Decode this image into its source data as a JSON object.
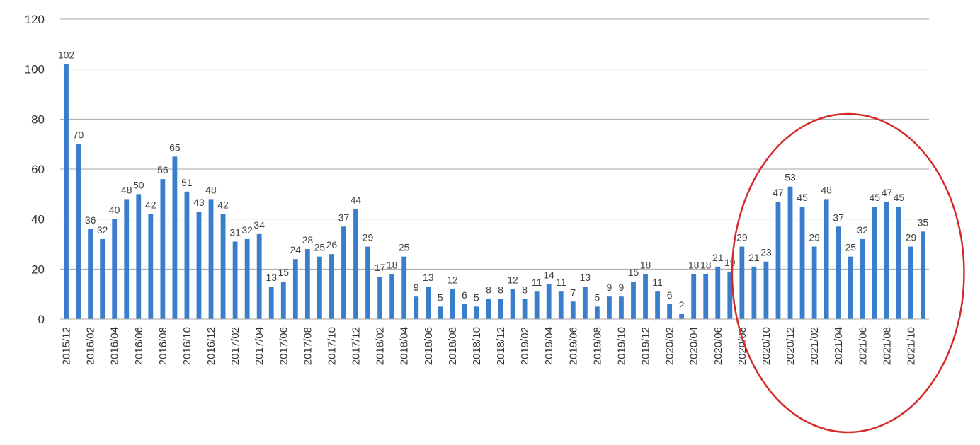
{
  "chart_data": {
    "type": "bar",
    "categories": [
      "2015/12",
      "2016/01",
      "2016/02",
      "2016/03",
      "2016/04",
      "2016/05",
      "2016/06",
      "2016/07",
      "2016/08",
      "2016/09",
      "2016/10",
      "2016/11",
      "2016/12",
      "2017/01",
      "2017/02",
      "2017/03",
      "2017/04",
      "2017/05",
      "2017/06",
      "2017/07",
      "2017/08",
      "2017/09",
      "2017/10",
      "2017/11",
      "2017/12",
      "2018/01",
      "2018/02",
      "2018/03",
      "2018/04",
      "2018/05",
      "2018/06",
      "2018/07",
      "2018/08",
      "2018/09",
      "2018/10",
      "2018/11",
      "2018/12",
      "2019/01",
      "2019/02",
      "2019/03",
      "2019/04",
      "2019/05",
      "2019/06",
      "2019/07",
      "2019/08",
      "2019/09",
      "2019/10",
      "2019/11",
      "2019/12",
      "2020/01",
      "2020/02",
      "2020/03",
      "2020/04",
      "2020/05",
      "2020/06",
      "2020/07",
      "2020/08",
      "2020/09",
      "2020/10",
      "2020/11",
      "2020/12",
      "2021/01",
      "2021/02",
      "2021/03",
      "2021/04",
      "2021/05",
      "2021/06",
      "2021/07",
      "2021/08",
      "2021/09",
      "2021/10",
      "2021/11"
    ],
    "tick_labels": [
      "2015/12",
      "2016/02",
      "2016/04",
      "2016/06",
      "2016/08",
      "2016/10",
      "2016/12",
      "2017/02",
      "2017/04",
      "2017/06",
      "2017/08",
      "2017/10",
      "2017/12",
      "2018/02",
      "2018/04",
      "2018/06",
      "2018/08",
      "2018/10",
      "2018/12",
      "2019/02",
      "2019/04",
      "2019/06",
      "2019/08",
      "2019/10",
      "2019/12",
      "2020/02",
      "2020/04",
      "2020/06",
      "2020/08",
      "2020/10",
      "2020/12",
      "2021/02",
      "2021/04",
      "2021/06",
      "2021/08",
      "2021/10"
    ],
    "values": [
      102,
      70,
      36,
      32,
      40,
      48,
      50,
      42,
      56,
      65,
      51,
      43,
      48,
      42,
      31,
      32,
      34,
      13,
      15,
      24,
      28,
      25,
      26,
      37,
      44,
      29,
      17,
      18,
      25,
      9,
      13,
      5,
      12,
      6,
      5,
      8,
      8,
      12,
      8,
      11,
      14,
      11,
      7,
      13,
      5,
      9,
      9,
      15,
      18,
      11,
      6,
      2,
      18,
      18,
      21,
      19,
      29,
      21,
      23,
      47,
      53,
      45,
      29,
      48,
      37,
      25,
      32,
      45,
      47,
      45,
      29,
      35
    ],
    "ylim": [
      0,
      120
    ],
    "yticks": [
      "0",
      "20",
      "40",
      "60",
      "80",
      "100",
      "120"
    ],
    "grid": true,
    "legend": "none",
    "bar_color": "#3a7dcc",
    "grid_color": "#a6a6a6",
    "label_color": "#404040",
    "highlight": {
      "shape": "ellipse",
      "color": "#d42a2a",
      "covers_categories": [
        "2020/10",
        "2021/11"
      ]
    }
  }
}
